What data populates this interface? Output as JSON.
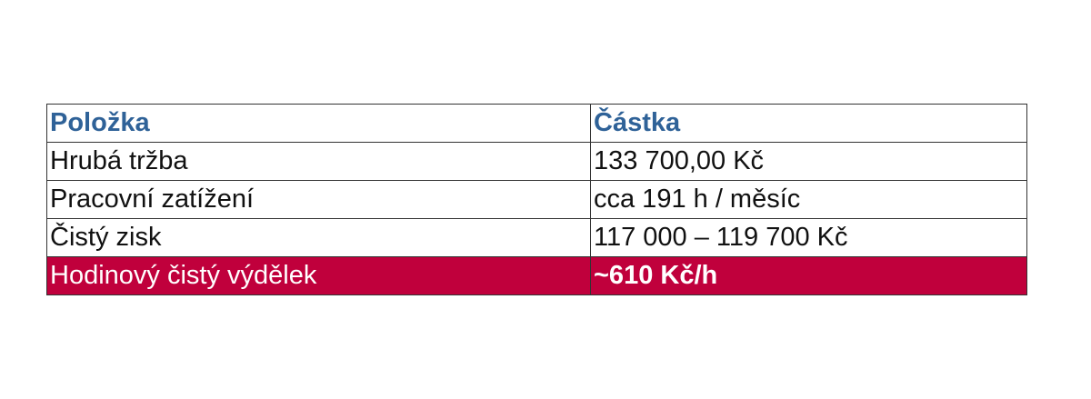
{
  "table": {
    "headers": [
      "Položka",
      "Částka"
    ],
    "rows": [
      [
        "Hrubá tržba",
        "133 700,00 Kč"
      ],
      [
        "Pracovní zatížení",
        "cca 191 h / měsíc"
      ],
      [
        "Čistý zisk",
        "117 000 – 119 700 Kč"
      ],
      [
        "Hodinový čistý výdělek",
        "~610 Kč/h"
      ]
    ],
    "header_color": "#2f6298",
    "highlight_color": "#c0003c"
  }
}
